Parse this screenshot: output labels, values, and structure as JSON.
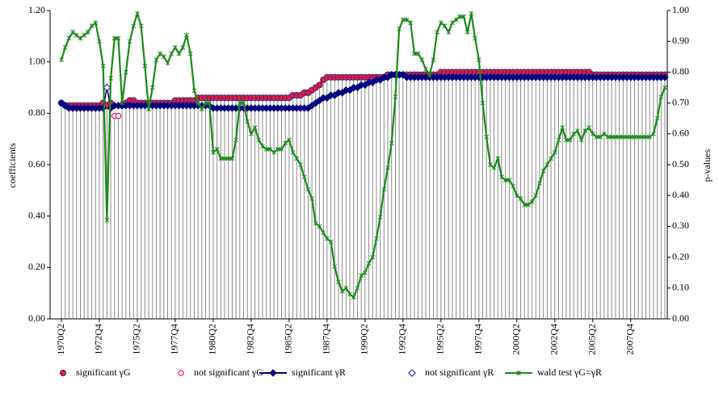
{
  "chart_data": {
    "type": "line",
    "y_label": "coefficients",
    "y2_label": "p-values",
    "categories": [
      "1970Q2",
      null,
      null,
      null,
      null,
      null,
      null,
      null,
      null,
      null,
      "1972Q4",
      null,
      null,
      null,
      null,
      null,
      null,
      null,
      null,
      null,
      "1975Q2",
      null,
      null,
      null,
      null,
      null,
      null,
      null,
      null,
      null,
      "1977Q4",
      null,
      null,
      null,
      null,
      null,
      null,
      null,
      null,
      null,
      "1980Q2",
      null,
      null,
      null,
      null,
      null,
      null,
      null,
      null,
      null,
      "1982Q4",
      null,
      null,
      null,
      null,
      null,
      null,
      null,
      null,
      null,
      "1985Q2",
      null,
      null,
      null,
      null,
      null,
      null,
      null,
      null,
      null,
      "1987Q4",
      null,
      null,
      null,
      null,
      null,
      null,
      null,
      null,
      null,
      "1990Q2",
      null,
      null,
      null,
      null,
      null,
      null,
      null,
      null,
      null,
      "1992Q4",
      null,
      null,
      null,
      null,
      null,
      null,
      null,
      null,
      null,
      "1995Q2",
      null,
      null,
      null,
      null,
      null,
      null,
      null,
      null,
      null,
      "1997Q4",
      null,
      null,
      null,
      null,
      null,
      null,
      null,
      null,
      null,
      "2000Q2",
      null,
      null,
      null,
      null,
      null,
      null,
      null,
      null,
      null,
      "2002Q4",
      null,
      null,
      null,
      null,
      null,
      null,
      null,
      null,
      null,
      "2005Q2",
      null,
      null,
      null,
      null,
      null,
      null,
      null,
      null,
      null,
      "2007Q4",
      null,
      null,
      null,
      null,
      null,
      null,
      null,
      null,
      null
    ],
    "ylim": [
      0,
      1.2
    ],
    "yticks": [
      {
        "value": 0,
        "label": "0.00"
      },
      {
        "value": 0.2,
        "label": "0.20"
      },
      {
        "value": 0.4,
        "label": "0.40"
      },
      {
        "value": 0.6,
        "label": "0.60"
      },
      {
        "value": 0.8,
        "label": "0.80"
      },
      {
        "value": 1.0,
        "label": "1.00"
      },
      {
        "value": 1.2,
        "label": "1.20"
      }
    ],
    "y2lim": [
      0,
      1.0
    ],
    "y2ticks": [
      {
        "value": 0,
        "label": "0.00"
      },
      {
        "value": 0.1,
        "label": "0.10"
      },
      {
        "value": 0.2,
        "label": "0.20"
      },
      {
        "value": 0.3,
        "label": "0.30"
      },
      {
        "value": 0.4,
        "label": "0.40"
      },
      {
        "value": 0.5,
        "label": "0.50"
      },
      {
        "value": 0.6,
        "label": "0.60"
      },
      {
        "value": 0.7,
        "label": "0.70"
      },
      {
        "value": 0.8,
        "label": "0.80"
      },
      {
        "value": 0.9,
        "label": "0.90"
      },
      {
        "value": 1.0,
        "label": "1.00"
      }
    ],
    "drop_lines": true,
    "series": [
      {
        "name": "significant γG",
        "color": "#e8174a",
        "marker": "circle",
        "line": false,
        "values": [
          0.84,
          0.83,
          0.83,
          0.83,
          0.83,
          0.83,
          0.83,
          0.83,
          0.83,
          0.83,
          0.83,
          0.84,
          0.83,
          0.84,
          null,
          null,
          0.83,
          0.84,
          0.85,
          0.85,
          0.84,
          0.84,
          0.84,
          0.84,
          0.84,
          0.84,
          0.84,
          0.84,
          0.84,
          0.84,
          0.85,
          0.85,
          0.85,
          0.85,
          0.85,
          0.85,
          0.86,
          0.86,
          0.86,
          0.86,
          0.86,
          0.86,
          0.86,
          0.86,
          0.86,
          0.86,
          0.86,
          0.86,
          0.86,
          0.86,
          0.86,
          0.86,
          0.86,
          0.86,
          0.86,
          0.86,
          0.86,
          0.86,
          0.86,
          0.86,
          0.86,
          0.87,
          0.87,
          0.87,
          0.88,
          0.88,
          0.89,
          0.9,
          0.91,
          0.93,
          0.94,
          0.94,
          0.94,
          0.94,
          0.94,
          0.94,
          0.94,
          0.94,
          0.94,
          0.94,
          0.94,
          0.94,
          0.94,
          0.94,
          0.94,
          0.94,
          0.95,
          0.95,
          0.95,
          0.95,
          0.95,
          0.95,
          0.95,
          0.95,
          0.95,
          0.95,
          0.95,
          0.95,
          0.95,
          0.95,
          0.96,
          0.96,
          0.96,
          0.96,
          0.96,
          0.96,
          0.96,
          0.96,
          0.96,
          0.96,
          0.96,
          0.96,
          0.96,
          0.96,
          0.96,
          0.96,
          0.96,
          0.96,
          0.96,
          0.96,
          0.96,
          0.96,
          0.96,
          0.96,
          0.96,
          0.96,
          0.96,
          0.96,
          0.96,
          0.96,
          0.96,
          0.96,
          0.96,
          0.96,
          0.96,
          0.96,
          0.96,
          0.96,
          0.96,
          0.96,
          0.95,
          0.95,
          0.95,
          0.95,
          0.95,
          0.95,
          0.95,
          0.95,
          0.95,
          0.95,
          0.95,
          0.95,
          0.95,
          0.95,
          0.95,
          0.95,
          0.95,
          0.95,
          0.95,
          0.95
        ]
      },
      {
        "name": "not significant γG",
        "color": "#e8174a",
        "marker": "circle-open",
        "line": false,
        "values": [
          null,
          null,
          null,
          null,
          null,
          null,
          null,
          null,
          null,
          null,
          null,
          null,
          null,
          null,
          0.79,
          0.79,
          null,
          null,
          null,
          null,
          null,
          null,
          null,
          null,
          null,
          null,
          null,
          null,
          null,
          null,
          null,
          null,
          null,
          null,
          null,
          null,
          null,
          null,
          null,
          null,
          null,
          null,
          null,
          null,
          null,
          null,
          null,
          null,
          null,
          null,
          null,
          null,
          null,
          null,
          null,
          null,
          null,
          null,
          null,
          null,
          null,
          null,
          null,
          null,
          null,
          null,
          null,
          null,
          null,
          null,
          null,
          null,
          null,
          null,
          null,
          null,
          null,
          null,
          null,
          null,
          null,
          null,
          null,
          null,
          null,
          null,
          null,
          null,
          null,
          null,
          null,
          null,
          null,
          null,
          null,
          null,
          null,
          null,
          null,
          null,
          null,
          null,
          null,
          null,
          null,
          null,
          null,
          null,
          null,
          null,
          null,
          null,
          null,
          null,
          null,
          null,
          null,
          null,
          null,
          null,
          null,
          null,
          null,
          null,
          null,
          null,
          null,
          null,
          null,
          null,
          null,
          null,
          null,
          null,
          null,
          null,
          null,
          null,
          null,
          null,
          null,
          null,
          null,
          null,
          null,
          null,
          null,
          null,
          null,
          null,
          null,
          null,
          null,
          null,
          null,
          null,
          null,
          null,
          null,
          null
        ]
      },
      {
        "name": "significant γR",
        "color": "#000080",
        "marker": "diamond",
        "line": true,
        "values": [
          0.84,
          0.83,
          0.82,
          0.82,
          0.82,
          0.82,
          0.82,
          0.82,
          0.82,
          0.82,
          0.82,
          0.82,
          0.9,
          0.82,
          0.83,
          0.83,
          0.83,
          0.83,
          0.83,
          0.83,
          0.83,
          0.83,
          0.83,
          0.83,
          0.83,
          0.83,
          0.83,
          0.83,
          0.83,
          0.83,
          0.83,
          0.83,
          0.83,
          0.83,
          0.83,
          0.83,
          0.83,
          0.83,
          0.83,
          0.83,
          0.82,
          0.82,
          0.82,
          0.82,
          0.82,
          0.82,
          0.82,
          0.82,
          0.82,
          0.82,
          0.82,
          0.82,
          0.82,
          0.82,
          0.82,
          0.82,
          0.82,
          0.82,
          0.82,
          0.82,
          0.82,
          0.82,
          0.82,
          0.82,
          0.82,
          0.82,
          0.83,
          0.84,
          0.85,
          0.86,
          0.86,
          0.87,
          0.87,
          0.88,
          0.88,
          0.89,
          0.89,
          0.9,
          0.9,
          0.91,
          0.91,
          0.92,
          0.92,
          0.93,
          0.93,
          0.94,
          0.94,
          0.95,
          0.95,
          0.95,
          0.95,
          0.94,
          0.94,
          0.94,
          0.94,
          0.94,
          0.94,
          0.94,
          0.94,
          0.94,
          0.94,
          0.94,
          0.94,
          0.94,
          0.94,
          0.94,
          0.94,
          0.94,
          0.94,
          0.94,
          0.94,
          0.94,
          0.94,
          0.94,
          0.94,
          0.94,
          0.94,
          0.94,
          0.94,
          0.94,
          0.94,
          0.94,
          0.94,
          0.94,
          0.94,
          0.94,
          0.94,
          0.94,
          0.94,
          0.94,
          0.94,
          0.94,
          0.94,
          0.94,
          0.94,
          0.94,
          0.94,
          0.94,
          0.94,
          0.94,
          0.94,
          0.94,
          0.94,
          0.94,
          0.94,
          0.94,
          0.94,
          0.94,
          0.94,
          0.94,
          0.94,
          0.94,
          0.94,
          0.94,
          0.94,
          0.94,
          0.94,
          0.94,
          0.94,
          0.94
        ]
      },
      {
        "name": "not significant γR",
        "color": "#2233cc",
        "marker": "diamond-open",
        "line": false,
        "values": [
          null,
          null,
          null,
          null,
          null,
          null,
          null,
          null,
          null,
          null,
          null,
          null,
          0.9,
          null,
          null,
          null,
          null,
          null,
          null,
          null,
          null,
          null,
          null,
          null,
          null,
          null,
          null,
          null,
          null,
          null,
          null,
          null,
          null,
          null,
          null,
          null,
          null,
          null,
          null,
          null,
          null,
          null,
          null,
          null,
          null,
          null,
          null,
          null,
          null,
          null,
          null,
          null,
          null,
          null,
          null,
          null,
          null,
          null,
          null,
          null,
          null,
          null,
          null,
          null,
          null,
          null,
          null,
          null,
          null,
          null,
          null,
          null,
          null,
          null,
          null,
          null,
          null,
          null,
          null,
          null,
          null,
          null,
          null,
          null,
          null,
          null,
          null,
          null,
          null,
          null,
          null,
          null,
          null,
          null,
          null,
          null,
          null,
          null,
          null,
          null,
          null,
          null,
          null,
          null,
          null,
          null,
          null,
          null,
          null,
          null,
          null,
          null,
          null,
          null,
          null,
          null,
          null,
          null,
          null,
          null,
          null,
          null,
          null,
          null,
          null,
          null,
          null,
          null,
          null,
          null,
          null,
          null,
          null,
          null,
          null,
          null,
          null,
          null,
          null,
          null,
          null,
          null,
          null,
          null,
          null,
          null,
          null,
          null,
          null,
          null,
          null,
          null,
          null,
          null,
          null,
          null,
          null,
          null,
          null,
          null
        ]
      },
      {
        "name": "wald test γG=γR",
        "color": "#1a8a1a",
        "marker": "star",
        "line": true,
        "axis": "y2",
        "values": [
          0.84,
          0.88,
          0.91,
          0.93,
          0.92,
          0.91,
          0.92,
          0.93,
          0.95,
          0.96,
          0.9,
          0.82,
          0.32,
          0.78,
          0.91,
          0.91,
          0.7,
          0.8,
          0.9,
          0.95,
          0.99,
          0.95,
          0.82,
          0.68,
          0.75,
          0.84,
          0.86,
          0.85,
          0.83,
          0.86,
          0.88,
          0.86,
          0.88,
          0.92,
          0.86,
          0.74,
          0.7,
          0.68,
          0.7,
          0.7,
          0.54,
          0.55,
          0.52,
          0.52,
          0.52,
          0.52,
          0.58,
          0.7,
          0.7,
          0.64,
          0.6,
          0.62,
          0.58,
          0.56,
          0.55,
          0.55,
          0.54,
          0.55,
          0.55,
          0.57,
          0.58,
          0.54,
          0.52,
          0.5,
          0.46,
          0.42,
          0.39,
          0.31,
          0.3,
          0.28,
          0.26,
          0.25,
          0.17,
          0.12,
          0.09,
          0.1,
          0.08,
          0.07,
          0.1,
          0.14,
          0.15,
          0.18,
          0.2,
          0.26,
          0.33,
          0.42,
          0.49,
          0.57,
          0.72,
          0.94,
          0.97,
          0.97,
          0.96,
          0.86,
          0.86,
          0.84,
          0.81,
          0.79,
          0.84,
          0.93,
          0.96,
          0.95,
          0.93,
          0.96,
          0.97,
          0.98,
          0.98,
          0.93,
          0.99,
          0.91,
          0.84,
          0.7,
          0.59,
          0.5,
          0.49,
          0.52,
          0.46,
          0.45,
          0.45,
          0.43,
          0.4,
          0.39,
          0.37,
          0.37,
          0.38,
          0.4,
          0.44,
          0.48,
          0.5,
          0.52,
          0.54,
          0.58,
          0.62,
          0.58,
          0.58,
          0.6,
          0.61,
          0.58,
          0.61,
          0.62,
          0.6,
          0.59,
          0.59,
          0.6,
          0.59,
          0.59,
          0.59,
          0.59,
          0.59,
          0.59,
          0.59,
          0.59,
          0.59,
          0.59,
          0.59,
          0.59,
          0.6,
          0.65,
          0.72,
          0.75
        ]
      }
    ]
  }
}
